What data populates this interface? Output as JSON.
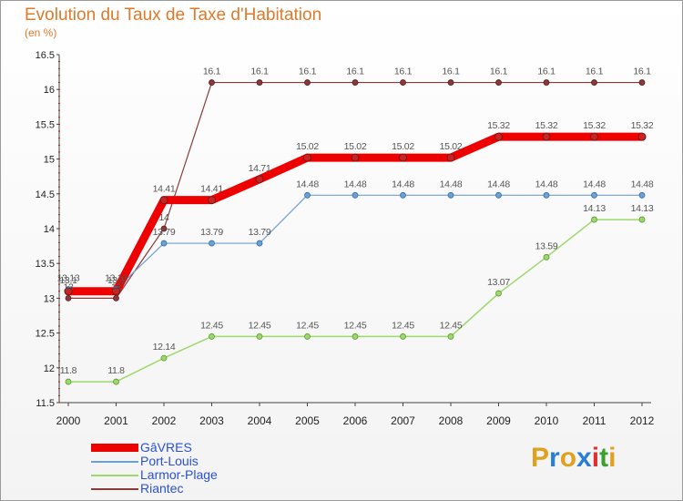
{
  "title": "Evolution du Taux de Taxe d'Habitation",
  "subtitle": "(en %)",
  "logo_text": "Proxiti",
  "chart_data": {
    "type": "line",
    "x": [
      "2000",
      "2001",
      "2002",
      "2003",
      "2004",
      "2005",
      "2006",
      "2007",
      "2008",
      "2009",
      "2010",
      "2011",
      "2012"
    ],
    "ylim": [
      11.5,
      16.5
    ],
    "yticks": [
      "11.5",
      "12",
      "12.5",
      "13",
      "13.5",
      "14",
      "14.5",
      "15",
      "15.5",
      "16",
      "16.5"
    ],
    "grid": false,
    "legend_position": "bottom-left",
    "series": [
      {
        "name": "GâVRES",
        "color": "#ee0000",
        "values": [
          13.1,
          13.1,
          14.41,
          14.41,
          14.71,
          15.02,
          15.02,
          15.02,
          15.02,
          15.32,
          15.32,
          15.32,
          15.32
        ],
        "labels": [
          "13.1",
          "13.1",
          "14.41",
          "14.41",
          "14.71",
          "15.02",
          "15.02",
          "15.02",
          "15.02",
          "15.32",
          "15.32",
          "15.32",
          "15.32"
        ]
      },
      {
        "name": "Port-Louis",
        "color": "#6fa0d2",
        "values": [
          13.13,
          13.13,
          13.79,
          13.79,
          13.79,
          14.48,
          14.48,
          14.48,
          14.48,
          14.48,
          14.48,
          14.48,
          14.48
        ],
        "labels": [
          "13.13",
          "13.13",
          "13.79",
          "13.79",
          "13.79",
          "14.48",
          "14.48",
          "14.48",
          "14.48",
          "14.48",
          "14.48",
          "14.48",
          "14.48"
        ]
      },
      {
        "name": "Larmor-Plage",
        "color": "#9ed86c",
        "values": [
          11.8,
          11.8,
          12.14,
          12.45,
          12.45,
          12.45,
          12.45,
          12.45,
          12.45,
          13.07,
          13.59,
          14.13,
          14.13
        ],
        "labels": [
          "11.8",
          "11.8",
          "12.14",
          "12.45",
          "12.45",
          "12.45",
          "12.45",
          "12.45",
          "12.45",
          "13.07",
          "13.59",
          "14.13",
          "14.13"
        ]
      },
      {
        "name": "Riantec",
        "color": "#8a3a3a",
        "values": [
          13.0,
          13.0,
          14.0,
          16.1,
          16.1,
          16.1,
          16.1,
          16.1,
          16.1,
          16.1,
          16.1,
          16.1,
          16.1
        ],
        "labels": [
          "13",
          "13",
          "14",
          "16.1",
          "16.1",
          "16.1",
          "16.1",
          "16.1",
          "16.1",
          "16.1",
          "16.1",
          "16.1",
          "16.1"
        ]
      }
    ]
  }
}
